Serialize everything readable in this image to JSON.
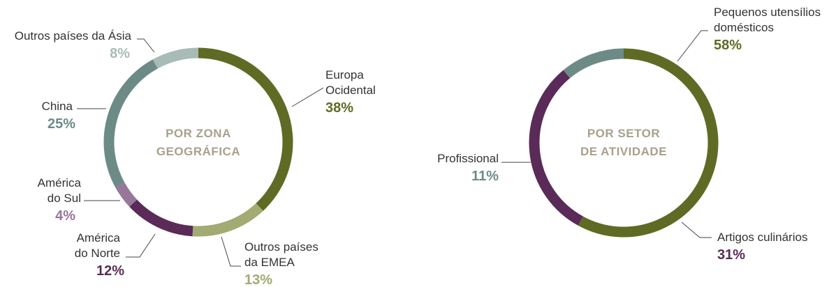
{
  "chart_data": [
    {
      "type": "pie",
      "title_lines": [
        "POR ZONA",
        "GEOGRÁFICA"
      ],
      "categories": [
        "Europa Ocidental",
        "Outros países da EMEA",
        "América do Norte",
        "América do Sul",
        "China",
        "Outros países da Ásia"
      ],
      "values": [
        38,
        13,
        12,
        4,
        25,
        8
      ],
      "value_labels": [
        "38%",
        "13%",
        "12%",
        "4%",
        "25%",
        "8%"
      ],
      "label_lines": [
        [
          "Europa",
          "Ocidental"
        ],
        [
          "Outros países",
          "da EMEA"
        ],
        [
          "América",
          "do Norte"
        ],
        [
          "América",
          "do Sul"
        ],
        [
          "China"
        ],
        [
          "Outros países da Ásia"
        ]
      ],
      "colors": [
        "#5f6a24",
        "#a3aa72",
        "#5a2a58",
        "#98779a",
        "#6d8b86",
        "#a8bbb6"
      ],
      "style": "donut"
    },
    {
      "type": "pie",
      "title_lines": [
        "POR SETOR",
        "DE ATIVIDADE"
      ],
      "categories": [
        "Pequenos utensílios domésticos",
        "Artigos culinários",
        "Profissional"
      ],
      "values": [
        58,
        31,
        11
      ],
      "value_labels": [
        "58%",
        "31%",
        "11%"
      ],
      "label_lines": [
        [
          "Pequenos utensílios",
          "domésticos"
        ],
        [
          "Artigos culinários"
        ],
        [
          "Profissional"
        ]
      ],
      "colors": [
        "#5f6a24",
        "#5a2a58",
        "#6d8b86"
      ],
      "style": "donut"
    }
  ]
}
